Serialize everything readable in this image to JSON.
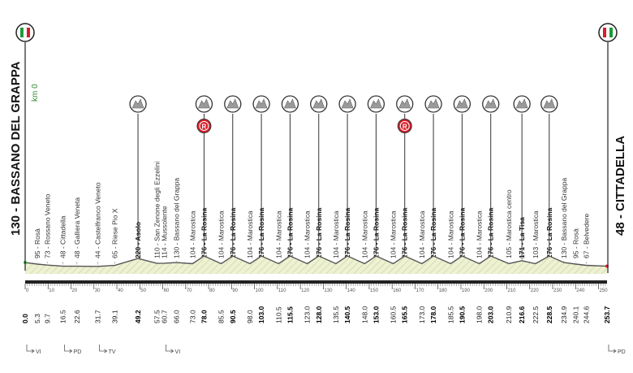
{
  "start": {
    "label": "130 - BASSANO DEL GRAPPA",
    "km0": "km 0"
  },
  "finish": {
    "label": "48 - CITTADELLA"
  },
  "colors": {
    "profile_fill": "#eef1d2",
    "profile_line": "#555555",
    "axis": "#222222",
    "sprint_red": "#d81e2a",
    "flag_green": "#1a9a3a",
    "flag_red": "#d81e2a",
    "climb_icon": "#9a9a9a",
    "altitude_green": "#2e8b2e"
  },
  "distance_ticks": [
    "0",
    "10",
    "20",
    "30",
    "40",
    "50",
    "60",
    "70",
    "80",
    "90",
    "100",
    "110",
    "120",
    "130",
    "140",
    "150",
    "160",
    "170",
    "180",
    "190",
    "200",
    "210",
    "220",
    "230",
    "240",
    "250"
  ],
  "points": [
    {
      "km": "0.0",
      "label": "",
      "bold": "",
      "kmbold": true
    },
    {
      "km": "5.3",
      "label": "95 - Rosà",
      "bold": ""
    },
    {
      "km": "9.7",
      "label": "73 - Rossano Veneto",
      "bold": ""
    },
    {
      "km": "16.5",
      "label": "48 - Cittadella",
      "bold": ""
    },
    {
      "km": "22.6",
      "label": "48 - Galliera Veneta",
      "bold": ""
    },
    {
      "km": "31.7",
      "label": "44 - Castelfranco Veneto",
      "bold": ""
    },
    {
      "km": "39.1",
      "label": "65 - Riese Pio X",
      "bold": ""
    },
    {
      "km": "49.2",
      "label": "",
      "bold": "220 - Asolo",
      "kmbold": true,
      "climb": true
    },
    {
      "km": "57.5",
      "label": "110 - San Zenone degli Ezzelini",
      "bold": ""
    },
    {
      "km": "60.7",
      "label": "114 - Mussolente",
      "bold": ""
    },
    {
      "km": "66.0",
      "label": "130 - Bassano del Grappa",
      "bold": ""
    },
    {
      "km": "73.0",
      "label": "104 - Marostica",
      "bold": ""
    },
    {
      "km": "78.0",
      "label": "",
      "bold": "276 - La Rosina",
      "kmbold": true,
      "climb": true,
      "sprint": true
    },
    {
      "km": "85.5",
      "label": "104 - Marostica",
      "bold": ""
    },
    {
      "km": "90.5",
      "label": "",
      "bold": "276 - La Rosina",
      "kmbold": true,
      "climb": true
    },
    {
      "km": "98.0",
      "label": "104 - Marostica",
      "bold": ""
    },
    {
      "km": "103.0",
      "label": "",
      "bold": "276 - La Rosina",
      "kmbold": true,
      "climb": true
    },
    {
      "km": "110.5",
      "label": "104 - Marostica",
      "bold": ""
    },
    {
      "km": "115.5",
      "label": "",
      "bold": "276 - La Rosina",
      "kmbold": true,
      "climb": true
    },
    {
      "km": "123.0",
      "label": "104 - Marostica",
      "bold": ""
    },
    {
      "km": "128.0",
      "label": "",
      "bold": "276 - La Rosina",
      "kmbold": true,
      "climb": true
    },
    {
      "km": "135.5",
      "label": "104 - Marostica",
      "bold": ""
    },
    {
      "km": "140.5",
      "label": "",
      "bold": "276 - La Rosina",
      "kmbold": true,
      "climb": true
    },
    {
      "km": "148.0",
      "label": "104 - Marostica",
      "bold": ""
    },
    {
      "km": "153.0",
      "label": "",
      "bold": "276 - La Rosina",
      "kmbold": true,
      "climb": true
    },
    {
      "km": "160.5",
      "label": "104 - Marostica",
      "bold": ""
    },
    {
      "km": "165.5",
      "label": "",
      "bold": "276 - La Rosina",
      "kmbold": true,
      "climb": true,
      "sprint": true
    },
    {
      "km": "173.0",
      "label": "104 - Marostica",
      "bold": ""
    },
    {
      "km": "178.0",
      "label": "",
      "bold": "276 - La Rosina",
      "kmbold": true,
      "climb": true
    },
    {
      "km": "185.5",
      "label": "104 - Marostica",
      "bold": ""
    },
    {
      "km": "190.5",
      "label": "",
      "bold": "276 - La Rosina",
      "kmbold": true,
      "climb": true
    },
    {
      "km": "198.0",
      "label": "104 - Marostica",
      "bold": ""
    },
    {
      "km": "203.0",
      "label": "",
      "bold": "276 - La Rosina",
      "kmbold": true,
      "climb": true
    },
    {
      "km": "210.9",
      "label": "105 - Marostica centro",
      "bold": ""
    },
    {
      "km": "216.6",
      "label": "",
      "bold": "171 - La Tisa",
      "kmbold": true,
      "climb": true
    },
    {
      "km": "222.5",
      "label": "103 - Marostica",
      "bold": ""
    },
    {
      "km": "228.5",
      "label": "",
      "bold": "276 - La Rosina",
      "kmbold": true,
      "climb": true
    },
    {
      "km": "234.9",
      "label": "130 - Bassano del Grappa",
      "bold": ""
    },
    {
      "km": "240.1",
      "label": "95 - Rosà",
      "bold": ""
    },
    {
      "km": "244.6",
      "label": "67 - Belvedere",
      "bold": ""
    },
    {
      "km": "253.7",
      "label": "",
      "bold": "",
      "kmbold": true
    }
  ],
  "footer_marks": [
    {
      "km": 0,
      "text": "VI"
    },
    {
      "km": 16.5,
      "text": "PD"
    },
    {
      "km": 31.7,
      "text": "TV"
    },
    {
      "km": 60.7,
      "text": "VI"
    },
    {
      "km": 253.7,
      "text": "PD"
    }
  ],
  "sprint_glyph": "R"
}
